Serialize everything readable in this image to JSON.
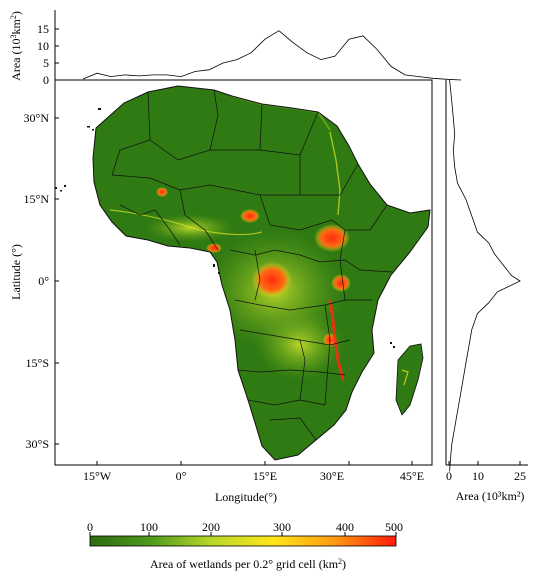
{
  "top_panel": {
    "ylabel_main": "Area (10",
    "ylabel_sup": "3",
    "ylabel_unit": "km",
    "ylabel_sup2": "2",
    "ylabel_close": ")",
    "yticks": [
      "0",
      "5",
      "10",
      "15"
    ]
  },
  "right_panel": {
    "xticks": [
      "0",
      "10",
      "25"
    ],
    "xlabel": "Area (10³km²)"
  },
  "map": {
    "xlabel": "Longitude(°)",
    "ylabel": "Latitude (°)",
    "xticks": [
      "15°W",
      "0°",
      "15°E",
      "30°E",
      "45°E"
    ],
    "yticks": [
      "30°N",
      "15°N",
      "0°",
      "15°S",
      "30°S"
    ],
    "colors": {
      "land": "#2f7a12",
      "land_light": "#4f9a1c",
      "wetland_yellow": "#e6e61a",
      "wetland_red": "#ff2a10",
      "border": "#111111"
    }
  },
  "colorbar": {
    "ticks": [
      "0",
      "100",
      "200",
      "300",
      "400",
      "500"
    ],
    "label": "Area of wetlands per 0.2° grid cell (km",
    "label_sup": "2",
    "label_close": ")",
    "colors": [
      "#2d6a0e",
      "#4f9a1c",
      "#b8d82a",
      "#ffe51a",
      "#ff9a12",
      "#ff1a0a"
    ]
  },
  "chart_data": [
    {
      "type": "line",
      "title": "",
      "xlabel": "",
      "ylabel": "Area (10³km²)",
      "ylim": [
        0,
        17
      ],
      "x_longitude_deg": [
        -17.5,
        -15,
        -12.5,
        -10,
        -7.5,
        -5,
        -2.5,
        0,
        2.5,
        5,
        7.5,
        10,
        12.5,
        15,
        17.5,
        20,
        22.5,
        25,
        27.5,
        30,
        32.5,
        35,
        37.5,
        40,
        42.5,
        45,
        47.5,
        50
      ],
      "values": [
        0.3,
        2,
        1,
        1.5,
        1.2,
        1.5,
        1.5,
        1,
        2.5,
        3,
        5,
        6,
        8,
        12,
        14.5,
        11,
        8,
        6,
        7,
        12,
        13,
        9,
        4,
        1.5,
        1,
        0.5,
        0.2,
        0
      ]
    },
    {
      "type": "line",
      "title": "",
      "xlabel": "Area (10³km²)",
      "ylabel": "",
      "xlim": [
        0,
        25
      ],
      "y_latitude_deg": [
        37,
        33,
        30,
        27,
        24,
        21,
        18,
        15,
        12,
        9,
        7,
        5,
        3,
        1,
        0,
        -2,
        -4,
        -6,
        -9,
        -12,
        -15,
        -18,
        -21,
        -24,
        -27,
        -30,
        -33,
        -35
      ],
      "values": [
        0.2,
        1,
        1.5,
        2,
        1.5,
        2,
        3,
        6,
        8,
        10,
        14,
        16,
        19,
        22,
        25,
        17,
        14,
        10,
        8,
        7,
        6,
        5,
        4,
        3,
        2,
        1,
        0.5,
        0.2
      ]
    }
  ]
}
